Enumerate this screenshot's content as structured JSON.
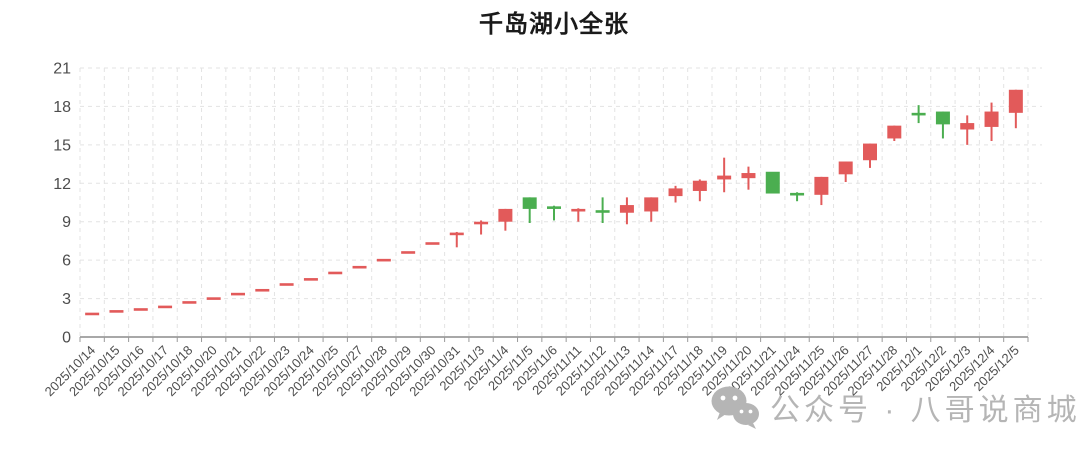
{
  "watermark": {
    "text": "公众号 · 八哥说商城",
    "icon": "wechat-icon"
  },
  "chart_data": {
    "type": "candlestick",
    "title": "千岛湖小全张",
    "xlabel": "",
    "ylabel": "",
    "ylim": [
      0,
      21
    ],
    "yticks": [
      0,
      3,
      6,
      9,
      12,
      15,
      18,
      21
    ],
    "grid": true,
    "legend_position": "none",
    "colors": {
      "up": "#e25a5a",
      "down": "#4bae50",
      "grid": "#e3e3e3",
      "axis": "#8c8c8c",
      "tick": "#999999",
      "label": "#4d4d4d",
      "title": "#1a1a1a",
      "watermark": "#b5b5b5"
    },
    "points": [
      {
        "date": "2025/10/14",
        "open": 1.9,
        "close": 1.9,
        "high": 1.9,
        "low": 1.9,
        "color": "red"
      },
      {
        "date": "2025/10/15",
        "open": 2.1,
        "close": 2.1,
        "high": 2.1,
        "low": 2.1,
        "color": "red"
      },
      {
        "date": "2025/10/16",
        "open": 2.25,
        "close": 2.25,
        "high": 2.25,
        "low": 2.25,
        "color": "red"
      },
      {
        "date": "2025/10/17",
        "open": 2.45,
        "close": 2.45,
        "high": 2.45,
        "low": 2.45,
        "color": "red"
      },
      {
        "date": "2025/10/18",
        "open": 2.8,
        "close": 2.8,
        "high": 2.8,
        "low": 2.8,
        "color": "red"
      },
      {
        "date": "2025/10/20",
        "open": 3.1,
        "close": 3.1,
        "high": 3.1,
        "low": 3.1,
        "color": "red"
      },
      {
        "date": "2025/10/21",
        "open": 3.45,
        "close": 3.45,
        "high": 3.45,
        "low": 3.45,
        "color": "red"
      },
      {
        "date": "2025/10/22",
        "open": 3.75,
        "close": 3.75,
        "high": 3.75,
        "low": 3.75,
        "color": "red"
      },
      {
        "date": "2025/10/23",
        "open": 4.2,
        "close": 4.2,
        "high": 4.2,
        "low": 4.2,
        "color": "red"
      },
      {
        "date": "2025/10/24",
        "open": 4.6,
        "close": 4.6,
        "high": 4.6,
        "low": 4.6,
        "color": "red"
      },
      {
        "date": "2025/10/25",
        "open": 5.1,
        "close": 5.1,
        "high": 5.1,
        "low": 5.1,
        "color": "red"
      },
      {
        "date": "2025/10/27",
        "open": 5.55,
        "close": 5.55,
        "high": 5.55,
        "low": 5.55,
        "color": "red"
      },
      {
        "date": "2025/10/28",
        "open": 6.1,
        "close": 6.1,
        "high": 6.1,
        "low": 6.1,
        "color": "red"
      },
      {
        "date": "2025/10/29",
        "open": 6.7,
        "close": 6.7,
        "high": 6.7,
        "low": 6.7,
        "color": "red"
      },
      {
        "date": "2025/10/30",
        "open": 7.4,
        "close": 7.4,
        "high": 7.4,
        "low": 7.4,
        "color": "red"
      },
      {
        "date": "2025/10/31",
        "open": 8.1,
        "close": 8.15,
        "high": 8.2,
        "low": 7.0,
        "color": "red"
      },
      {
        "date": "2025/11/3",
        "open": 9.0,
        "close": 9.0,
        "high": 9.1,
        "low": 8.0,
        "color": "red"
      },
      {
        "date": "2025/11/4",
        "open": 9.0,
        "close": 10.0,
        "high": 10.0,
        "low": 8.3,
        "color": "red"
      },
      {
        "date": "2025/11/5",
        "open": 10.9,
        "close": 10.0,
        "high": 10.9,
        "low": 8.9,
        "color": "green"
      },
      {
        "date": "2025/11/6",
        "open": 10.2,
        "close": 10.15,
        "high": 10.25,
        "low": 9.1,
        "color": "green"
      },
      {
        "date": "2025/11/11",
        "open": 10.0,
        "close": 10.0,
        "high": 10.05,
        "low": 9.0,
        "color": "red"
      },
      {
        "date": "2025/11/12",
        "open": 9.9,
        "close": 9.9,
        "high": 10.9,
        "low": 8.9,
        "color": "green"
      },
      {
        "date": "2025/11/13",
        "open": 9.7,
        "close": 10.3,
        "high": 10.9,
        "low": 8.8,
        "color": "red"
      },
      {
        "date": "2025/11/14",
        "open": 9.8,
        "close": 10.9,
        "high": 10.9,
        "low": 9.0,
        "color": "red"
      },
      {
        "date": "2025/11/17",
        "open": 11.0,
        "close": 11.6,
        "high": 11.8,
        "low": 10.5,
        "color": "red"
      },
      {
        "date": "2025/11/18",
        "open": 11.4,
        "close": 12.2,
        "high": 12.3,
        "low": 10.6,
        "color": "red"
      },
      {
        "date": "2025/11/19",
        "open": 12.3,
        "close": 12.6,
        "high": 14.0,
        "low": 11.3,
        "color": "red"
      },
      {
        "date": "2025/11/20",
        "open": 12.4,
        "close": 12.8,
        "high": 13.3,
        "low": 11.5,
        "color": "red"
      },
      {
        "date": "2025/11/21",
        "open": 12.9,
        "close": 11.2,
        "high": 12.9,
        "low": 11.2,
        "color": "green"
      },
      {
        "date": "2025/11/24",
        "open": 11.25,
        "close": 11.2,
        "high": 11.3,
        "low": 10.6,
        "color": "green"
      },
      {
        "date": "2025/11/25",
        "open": 11.1,
        "close": 12.5,
        "high": 12.5,
        "low": 10.3,
        "color": "red"
      },
      {
        "date": "2025/11/26",
        "open": 12.7,
        "close": 13.7,
        "high": 13.7,
        "low": 12.1,
        "color": "red"
      },
      {
        "date": "2025/11/27",
        "open": 13.8,
        "close": 15.1,
        "high": 15.1,
        "low": 13.2,
        "color": "red"
      },
      {
        "date": "2025/11/28",
        "open": 15.5,
        "close": 16.5,
        "high": 16.5,
        "low": 15.3,
        "color": "red"
      },
      {
        "date": "2025/12/1",
        "open": 17.5,
        "close": 17.5,
        "high": 18.1,
        "low": 16.7,
        "color": "green"
      },
      {
        "date": "2025/12/2",
        "open": 17.6,
        "close": 16.6,
        "high": 17.6,
        "low": 15.5,
        "color": "green"
      },
      {
        "date": "2025/12/3",
        "open": 16.2,
        "close": 16.7,
        "high": 17.3,
        "low": 15.0,
        "color": "red"
      },
      {
        "date": "2025/12/4",
        "open": 16.4,
        "close": 17.6,
        "high": 18.3,
        "low": 15.3,
        "color": "red"
      },
      {
        "date": "2025/12/5",
        "open": 17.5,
        "close": 19.3,
        "high": 19.3,
        "low": 16.3,
        "color": "red"
      }
    ]
  }
}
